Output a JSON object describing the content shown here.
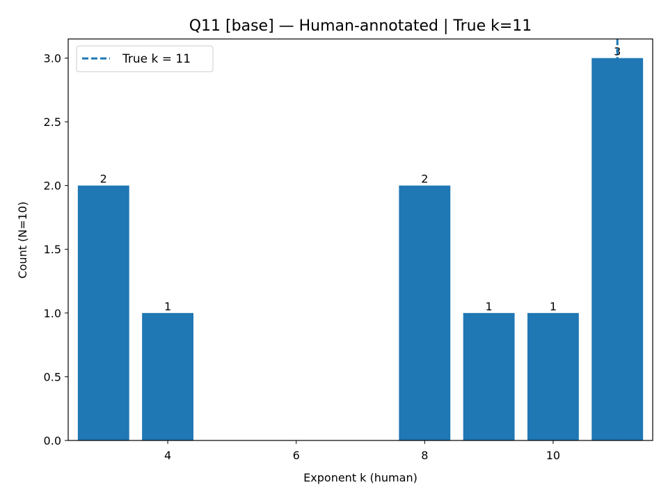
{
  "chart_data": {
    "type": "bar",
    "title": "Q11 [base] — Human-annotated | True k=11",
    "xlabel": "Exponent k (human)",
    "ylabel": "Count (N=10)",
    "x": [
      3,
      4,
      8,
      9,
      10,
      11
    ],
    "values": [
      2,
      1,
      2,
      1,
      1,
      3
    ],
    "bar_labels": [
      "2",
      "1",
      "2",
      "1",
      "1",
      "3"
    ],
    "bar_color": "#1f77b4",
    "xlim": [
      2.45,
      11.55
    ],
    "ylim": [
      0,
      3.15
    ],
    "xticks": [
      4,
      6,
      8,
      10
    ],
    "xtick_labels": [
      "4",
      "6",
      "8",
      "10"
    ],
    "yticks": [
      0,
      0.5,
      1,
      1.5,
      2,
      2.5,
      3
    ],
    "ytick_labels": [
      "0.0",
      "0.5",
      "1.0",
      "1.5",
      "2.0",
      "2.5",
      "3.0"
    ],
    "reference_line": {
      "x": 11,
      "style": "dashed",
      "color": "#1f77b4"
    },
    "legend": {
      "position": "top-left",
      "entries": [
        {
          "label": "True k = 11",
          "style": "dashed",
          "color": "#1f77b4"
        }
      ]
    },
    "grid": false
  }
}
